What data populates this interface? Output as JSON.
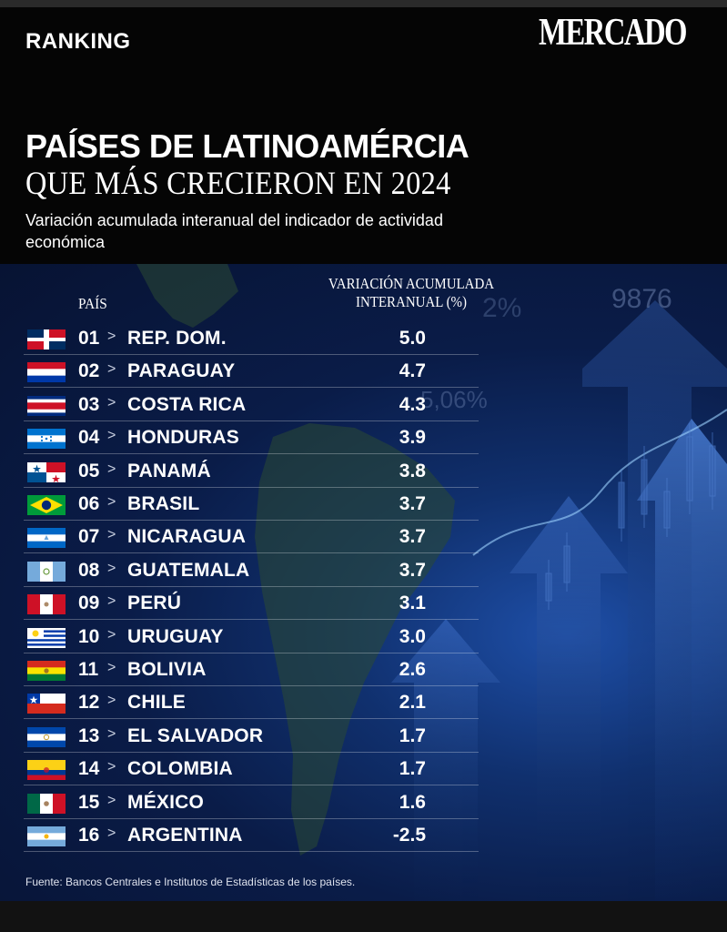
{
  "header": {
    "section": "RANKING",
    "brand": "MERCADO",
    "title_line1": "PAÍSES DE LATINOAMÉRCIA",
    "title_line2": "QUE MÁS CRECIERON EN 2024",
    "subtitle": "Variación acumulada interanual del indicador de actividad económica"
  },
  "table": {
    "col_country": "PAÍS",
    "col_value": "VARIACIÓN ACUMULADA INTERANUAL (%)",
    "separator": ">"
  },
  "background_text": [
    "9876",
    "2%",
    "5,06%"
  ],
  "footer": {
    "source": "Fuente: Bancos Centrales e Institutos de Estadísticas de los países."
  },
  "chart_data": {
    "type": "table",
    "title": "PAÍSES DE LATINOAMÉRCIA QUE MÁS CRECIERON EN 2024",
    "subtitle": "Variación acumulada interanual del indicador de actividad económica",
    "columns": [
      "PAÍS",
      "VARIACIÓN ACUMULADA INTERANUAL (%)"
    ],
    "rows": [
      {
        "rank": "01",
        "country": "REP. DOM.",
        "value": "5.0",
        "flag": "dominican-republic-flag-icon"
      },
      {
        "rank": "02",
        "country": "PARAGUAY",
        "value": "4.7",
        "flag": "paraguay-flag-icon"
      },
      {
        "rank": "03",
        "country": "COSTA RICA",
        "value": "4.3",
        "flag": "costa-rica-flag-icon"
      },
      {
        "rank": "04",
        "country": "HONDURAS",
        "value": "3.9",
        "flag": "honduras-flag-icon"
      },
      {
        "rank": "05",
        "country": "PANAMÁ",
        "value": "3.8",
        "flag": "panama-flag-icon"
      },
      {
        "rank": "06",
        "country": "BRASIL",
        "value": "3.7",
        "flag": "brazil-flag-icon"
      },
      {
        "rank": "07",
        "country": "NICARAGUA",
        "value": "3.7",
        "flag": "nicaragua-flag-icon"
      },
      {
        "rank": "08",
        "country": "GUATEMALA",
        "value": "3.7",
        "flag": "guatemala-flag-icon"
      },
      {
        "rank": "09",
        "country": "PERÚ",
        "value": "3.1",
        "flag": "peru-flag-icon"
      },
      {
        "rank": "10",
        "country": "URUGUAY",
        "value": "3.0",
        "flag": "uruguay-flag-icon"
      },
      {
        "rank": "11",
        "country": "BOLIVIA",
        "value": "2.6",
        "flag": "bolivia-flag-icon"
      },
      {
        "rank": "12",
        "country": "CHILE",
        "value": "2.1",
        "flag": "chile-flag-icon"
      },
      {
        "rank": "13",
        "country": "EL SALVADOR",
        "value": "1.7",
        "flag": "el-salvador-flag-icon"
      },
      {
        "rank": "14",
        "country": "COLOMBIA",
        "value": "1.7",
        "flag": "colombia-flag-icon"
      },
      {
        "rank": "15",
        "country": "MÉXICO",
        "value": "1.6",
        "flag": "mexico-flag-icon"
      },
      {
        "rank": "16",
        "country": "ARGENTINA",
        "value": "-2.5",
        "flag": "argentina-flag-icon"
      }
    ],
    "source": "Fuente: Bancos Centrales e Institutos de Estadísticas de los países."
  },
  "colors": {
    "header_bg": "#050505",
    "panel_deep": "#071333",
    "panel_glow": "#1e4fa8",
    "text": "#ffffff",
    "flag_red": "#ce1126",
    "flag_blue": "#002d62",
    "flag_green": "#009b3a",
    "flag_yellow": "#fedf00",
    "flag_sky": "#75aadb"
  }
}
